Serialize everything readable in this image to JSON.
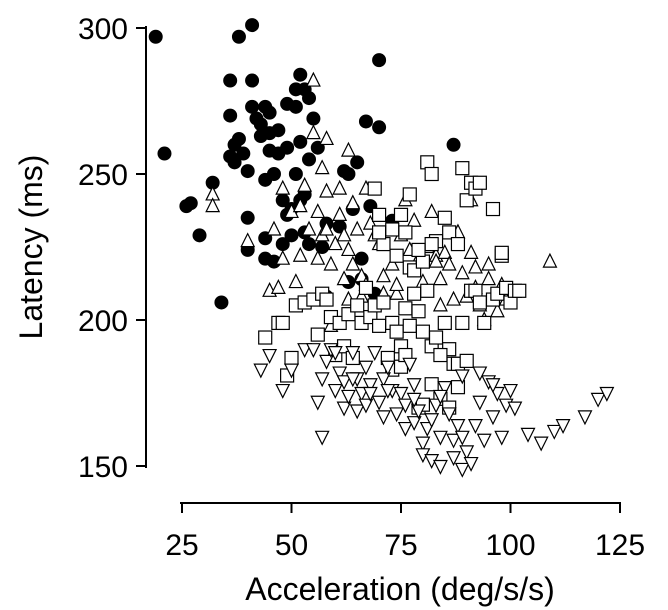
{
  "chart_data": {
    "type": "scatter",
    "title": "",
    "xlabel": "Acceleration (deg/s/s)",
    "ylabel": "Latency (ms)",
    "xlim": [
      15,
      125
    ],
    "ylim": [
      150,
      300
    ],
    "xticks": [
      25,
      50,
      75,
      100,
      125
    ],
    "yticks": [
      150,
      200,
      250,
      300
    ],
    "xtick_labels": [
      "25",
      "50",
      "75",
      "100",
      "125"
    ],
    "ytick_labels": [
      "150",
      "200",
      "250",
      "300"
    ],
    "grid": false,
    "legend": "none",
    "series": [
      {
        "marker": "filled-circle",
        "color": "#000000",
        "points": [
          [
            19,
            297
          ],
          [
            21,
            257
          ],
          [
            26,
            239
          ],
          [
            27,
            240
          ],
          [
            29,
            229
          ],
          [
            32,
            247
          ],
          [
            34,
            206
          ],
          [
            36,
            282
          ],
          [
            36,
            270
          ],
          [
            36,
            256
          ],
          [
            37,
            260
          ],
          [
            37,
            254
          ],
          [
            38,
            297
          ],
          [
            38,
            262
          ],
          [
            39,
            257
          ],
          [
            40,
            251
          ],
          [
            40,
            235
          ],
          [
            40,
            224
          ],
          [
            41,
            301
          ],
          [
            41,
            282
          ],
          [
            41,
            273
          ],
          [
            42,
            269
          ],
          [
            43,
            267
          ],
          [
            43,
            263
          ],
          [
            44,
            273
          ],
          [
            44,
            248
          ],
          [
            44,
            228
          ],
          [
            44,
            221
          ],
          [
            45,
            271
          ],
          [
            45,
            264
          ],
          [
            45,
            258
          ],
          [
            46,
            250
          ],
          [
            46,
            220
          ],
          [
            47,
            265
          ],
          [
            47,
            257
          ],
          [
            48,
            241
          ],
          [
            48,
            226
          ],
          [
            49,
            274
          ],
          [
            49,
            259
          ],
          [
            49,
            236
          ],
          [
            50,
            238
          ],
          [
            50,
            229
          ],
          [
            51,
            279
          ],
          [
            51,
            273
          ],
          [
            51,
            250
          ],
          [
            52,
            284
          ],
          [
            52,
            261
          ],
          [
            52,
            241
          ],
          [
            53,
            279
          ],
          [
            53,
            243
          ],
          [
            53,
            230
          ],
          [
            54,
            276
          ],
          [
            54,
            255
          ],
          [
            54,
            226
          ],
          [
            55,
            269
          ],
          [
            56,
            259
          ],
          [
            57,
            225
          ],
          [
            58,
            233
          ],
          [
            61,
            232
          ],
          [
            62,
            251
          ],
          [
            63,
            250
          ],
          [
            63,
            213
          ],
          [
            64,
            238
          ],
          [
            65,
            254
          ],
          [
            66,
            214
          ],
          [
            66,
            221
          ],
          [
            67,
            268
          ],
          [
            68,
            239
          ],
          [
            69,
            209
          ],
          [
            70,
            266
          ],
          [
            70,
            289
          ],
          [
            87,
            260
          ],
          [
            73,
            234
          ],
          [
            58,
            208
          ]
        ]
      },
      {
        "marker": "open-triangle-up",
        "color": "#000000",
        "points": [
          [
            32,
            243
          ],
          [
            32,
            239
          ],
          [
            40,
            227
          ],
          [
            45,
            210
          ],
          [
            46,
            231
          ],
          [
            48,
            245
          ],
          [
            48,
            221
          ],
          [
            50,
            237
          ],
          [
            52,
            239
          ],
          [
            52,
            222
          ],
          [
            53,
            246
          ],
          [
            54,
            231
          ],
          [
            55,
            282
          ],
          [
            55,
            264
          ],
          [
            56,
            237
          ],
          [
            56,
            221
          ],
          [
            57,
            229
          ],
          [
            57,
            252
          ],
          [
            58,
            262
          ],
          [
            58,
            244
          ],
          [
            58,
            231
          ],
          [
            59,
            219
          ],
          [
            60,
            226
          ],
          [
            61,
            245
          ],
          [
            61,
            236
          ],
          [
            62,
            229
          ],
          [
            62,
            214
          ],
          [
            63,
            258
          ],
          [
            63,
            224
          ],
          [
            64,
            240
          ],
          [
            64,
            219
          ],
          [
            65,
            231
          ],
          [
            66,
            215
          ],
          [
            67,
            245
          ],
          [
            67,
            212
          ],
          [
            68,
            233
          ],
          [
            69,
            229
          ],
          [
            70,
            226
          ],
          [
            71,
            209
          ],
          [
            72,
            231
          ],
          [
            73,
            219
          ],
          [
            74,
            209
          ],
          [
            75,
            229
          ],
          [
            76,
            241
          ],
          [
            77,
            224
          ],
          [
            78,
            234
          ],
          [
            79,
            221
          ],
          [
            80,
            213
          ],
          [
            81,
            225
          ],
          [
            82,
            237
          ],
          [
            83,
            222
          ],
          [
            84,
            214
          ],
          [
            84,
            205
          ],
          [
            85,
            223
          ],
          [
            86,
            219
          ],
          [
            87,
            207
          ],
          [
            88,
            230
          ],
          [
            89,
            216
          ],
          [
            90,
            208
          ],
          [
            91,
            223
          ],
          [
            92,
            211
          ],
          [
            93,
            205
          ],
          [
            94,
            200
          ],
          [
            95,
            214
          ],
          [
            96,
            208
          ],
          [
            97,
            203
          ],
          [
            98,
            212
          ],
          [
            99,
            207
          ],
          [
            109,
            220
          ],
          [
            91,
            241
          ],
          [
            47,
            211
          ],
          [
            51,
            213
          ],
          [
            59,
            198
          ],
          [
            63,
            207
          ],
          [
            66,
            208
          ],
          [
            71,
            215
          ],
          [
            74,
            212
          ],
          [
            83,
            220
          ],
          [
            92,
            218
          ],
          [
            95,
            219
          ]
        ]
      },
      {
        "marker": "open-square",
        "color": "#000000",
        "points": [
          [
            44,
            194
          ],
          [
            47,
            199
          ],
          [
            48,
            199
          ],
          [
            49,
            181
          ],
          [
            50,
            187
          ],
          [
            51,
            205
          ],
          [
            53,
            206
          ],
          [
            55,
            207
          ],
          [
            56,
            195
          ],
          [
            57,
            209
          ],
          [
            58,
            207
          ],
          [
            59,
            201
          ],
          [
            60,
            188
          ],
          [
            61,
            199
          ],
          [
            62,
            191
          ],
          [
            63,
            202
          ],
          [
            64,
            187
          ],
          [
            65,
            205
          ],
          [
            66,
            199
          ],
          [
            67,
            211
          ],
          [
            68,
            201
          ],
          [
            69,
            205
          ],
          [
            70,
            198
          ],
          [
            71,
            206
          ],
          [
            72,
            187
          ],
          [
            73,
            199
          ],
          [
            73,
            183
          ],
          [
            74,
            196
          ],
          [
            75,
            191
          ],
          [
            75,
            184
          ],
          [
            76,
            204
          ],
          [
            76,
            188
          ],
          [
            77,
            198
          ],
          [
            78,
            209
          ],
          [
            79,
            203
          ],
          [
            79,
            170
          ],
          [
            80,
            196
          ],
          [
            80,
            171
          ],
          [
            81,
            210
          ],
          [
            82,
            191
          ],
          [
            82,
            178
          ],
          [
            83,
            194
          ],
          [
            84,
            173
          ],
          [
            85,
            199
          ],
          [
            86,
            190
          ],
          [
            86,
            170
          ],
          [
            87,
            185
          ],
          [
            88,
            185
          ],
          [
            88,
            177
          ],
          [
            89,
            199
          ],
          [
            90,
            186
          ],
          [
            91,
            210
          ],
          [
            92,
            210
          ],
          [
            93,
            206
          ],
          [
            94,
            199
          ],
          [
            96,
            207
          ],
          [
            97,
            209
          ],
          [
            98,
            222
          ],
          [
            99,
            211
          ],
          [
            100,
            206
          ],
          [
            101,
            210
          ],
          [
            102,
            210
          ],
          [
            69,
            245
          ],
          [
            70,
            236
          ],
          [
            71,
            226
          ],
          [
            73,
            231
          ],
          [
            75,
            236
          ],
          [
            76,
            230
          ],
          [
            77,
            218
          ],
          [
            78,
            217
          ],
          [
            80,
            220
          ],
          [
            81,
            254
          ],
          [
            82,
            250
          ],
          [
            83,
            227
          ],
          [
            85,
            235
          ],
          [
            86,
            230
          ],
          [
            88,
            226
          ],
          [
            89,
            252
          ],
          [
            90,
            241
          ],
          [
            91,
            247
          ],
          [
            92,
            245
          ],
          [
            93,
            247
          ],
          [
            96,
            238
          ],
          [
            98,
            223
          ],
          [
            82,
            226
          ],
          [
            84,
            188
          ],
          [
            74,
            222
          ],
          [
            77,
            243
          ],
          [
            79,
            224
          ],
          [
            70,
            230
          ]
        ]
      },
      {
        "marker": "open-triangle-down",
        "color": "#000000",
        "points": [
          [
            43,
            183
          ],
          [
            45,
            188
          ],
          [
            48,
            176
          ],
          [
            50,
            183
          ],
          [
            53,
            190
          ],
          [
            55,
            190
          ],
          [
            56,
            172
          ],
          [
            57,
            180
          ],
          [
            57,
            160
          ],
          [
            58,
            186
          ],
          [
            59,
            190
          ],
          [
            60,
            176
          ],
          [
            61,
            182
          ],
          [
            62,
            179
          ],
          [
            62,
            170
          ],
          [
            63,
            174
          ],
          [
            64,
            189
          ],
          [
            65,
            180
          ],
          [
            65,
            169
          ],
          [
            66,
            175
          ],
          [
            67,
            184
          ],
          [
            67,
            171
          ],
          [
            68,
            178
          ],
          [
            69,
            189
          ],
          [
            70,
            172
          ],
          [
            71,
            167
          ],
          [
            71,
            180
          ],
          [
            72,
            184
          ],
          [
            73,
            176
          ],
          [
            74,
            168
          ],
          [
            75,
            175
          ],
          [
            76,
            163
          ],
          [
            76,
            171
          ],
          [
            77,
            185
          ],
          [
            78,
            178
          ],
          [
            78,
            165
          ],
          [
            79,
            169
          ],
          [
            80,
            158
          ],
          [
            80,
            154
          ],
          [
            81,
            163
          ],
          [
            82,
            166
          ],
          [
            82,
            152
          ],
          [
            83,
            171
          ],
          [
            84,
            160
          ],
          [
            84,
            150
          ],
          [
            85,
            177
          ],
          [
            86,
            168
          ],
          [
            87,
            159
          ],
          [
            87,
            153
          ],
          [
            88,
            164
          ],
          [
            89,
            160
          ],
          [
            89,
            149
          ],
          [
            90,
            155
          ],
          [
            91,
            151
          ],
          [
            92,
            164
          ],
          [
            93,
            172
          ],
          [
            94,
            159
          ],
          [
            95,
            179
          ],
          [
            96,
            167
          ],
          [
            97,
            175
          ],
          [
            98,
            160
          ],
          [
            99,
            171
          ],
          [
            100,
            176
          ],
          [
            101,
            170
          ],
          [
            104,
            161
          ],
          [
            107,
            158
          ],
          [
            110,
            162
          ],
          [
            112,
            164
          ],
          [
            117,
            167
          ],
          [
            120,
            173
          ],
          [
            122,
            175
          ],
          [
            60,
            189
          ],
          [
            64,
            180
          ],
          [
            68,
            175
          ],
          [
            72,
            176
          ],
          [
            78,
            173
          ],
          [
            84,
            174
          ],
          [
            89,
            181
          ],
          [
            93,
            182
          ],
          [
            96,
            178
          ]
        ]
      }
    ]
  }
}
